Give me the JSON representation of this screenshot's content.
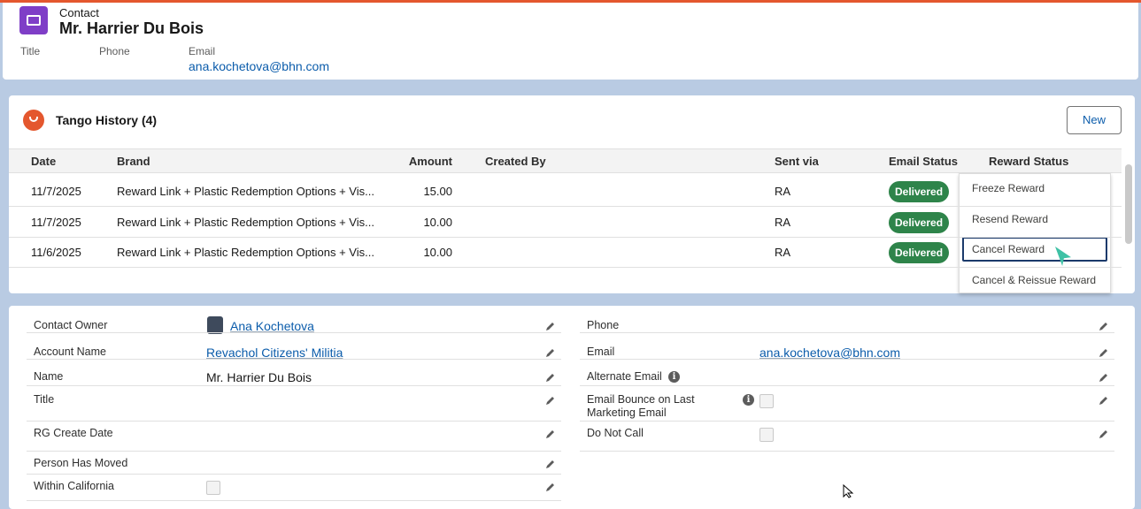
{
  "header": {
    "object": "Contact",
    "name": "Mr. Harrier Du Bois",
    "fields": [
      {
        "label": "Title"
      },
      {
        "label": "Phone"
      },
      {
        "label": "Email",
        "value": "ana.kochetova@bhn.com"
      }
    ]
  },
  "related": {
    "title": "Tango History (4)",
    "button": "New",
    "columns": [
      "Date",
      "Brand",
      "Amount",
      "Created By",
      "Sent via",
      "Email Status",
      "Reward Status"
    ],
    "rows": [
      {
        "date": "11/7/2025",
        "brand": "Reward Link + Plastic Redemption Options + Vis...",
        "amount": "15.00",
        "sent_via": "RA",
        "email_status": "Delivered"
      },
      {
        "date": "11/7/2025",
        "brand": "Reward Link + Plastic Redemption Options + Vis...",
        "amount": "10.00",
        "sent_via": "RA",
        "email_status": "Delivered"
      },
      {
        "date": "11/6/2025",
        "brand": "Reward Link + Plastic Redemption Options + Vis...",
        "amount": "10.00",
        "sent_via": "RA",
        "email_status": "Delivered"
      }
    ],
    "menu": [
      "Freeze Reward",
      "Resend Reward",
      "Cancel Reward",
      "Cancel & Reissue Reward"
    ]
  },
  "details": {
    "left": [
      {
        "label": "Contact Owner",
        "value": "Ana Kochetova",
        "link": true
      },
      {
        "label": "Account Name",
        "value": "Revachol Citizens' Militia",
        "link": true
      },
      {
        "label": "Name",
        "value": "Mr. Harrier Du Bois"
      },
      {
        "label": "Title"
      },
      {
        "label": "RG Create Date"
      },
      {
        "label": "Person Has Moved"
      },
      {
        "label": "Within California",
        "checkbox": true
      }
    ],
    "right": [
      {
        "label": "Phone"
      },
      {
        "label": "Email",
        "value": "ana.kochetova@bhn.com",
        "link": true
      },
      {
        "label": "Alternate Email",
        "info": true
      },
      {
        "label": "Email Bounce on Last Marketing Email",
        "info": true,
        "checkbox": true
      },
      {
        "label": "Do Not Call",
        "checkbox": true
      }
    ]
  }
}
